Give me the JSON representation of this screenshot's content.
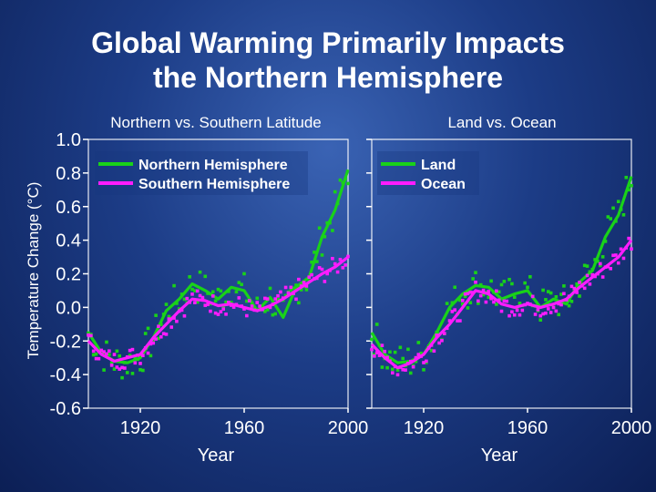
{
  "slide": {
    "title_line1": "Global Warming Primarily Impacts",
    "title_line2": "the Northern Hemisphere"
  },
  "colors": {
    "green": "#19d219",
    "magenta": "#ff1cff",
    "axis": "#ffffff",
    "text": "#ffffff",
    "title": "#ffffff"
  },
  "chart_data": [
    {
      "type": "line",
      "title": "Northern vs. Southern Latitude",
      "xlabel": "Year",
      "ylabel": "Temperature Change (°C)",
      "xlim": [
        1900,
        2000
      ],
      "ylim": [
        -0.6,
        1.0
      ],
      "xticks": [
        1920,
        1960,
        2000
      ],
      "yticks": [
        -0.6,
        -0.4,
        -0.2,
        0.0,
        0.2,
        0.4,
        0.6,
        0.8,
        1.0
      ],
      "ytick_labels": [
        "-0.6",
        "-0.4",
        "-0.2",
        "0.0",
        "0.2",
        "0.4",
        "0.6",
        "0.8",
        "1.0"
      ],
      "legend_position": "top-left",
      "x": [
        1900,
        1905,
        1910,
        1915,
        1920,
        1925,
        1930,
        1935,
        1940,
        1945,
        1950,
        1955,
        1960,
        1965,
        1970,
        1975,
        1980,
        1985,
        1990,
        1995,
        2000
      ],
      "series": [
        {
          "name": "Northern Hemisphere",
          "color": "#19d219",
          "values": [
            -0.15,
            -0.27,
            -0.32,
            -0.33,
            -0.3,
            -0.18,
            -0.02,
            0.05,
            0.14,
            0.1,
            0.05,
            0.12,
            0.1,
            -0.02,
            0.06,
            -0.06,
            0.12,
            0.18,
            0.42,
            0.58,
            0.82
          ]
        },
        {
          "name": "Southern Hemisphere",
          "color": "#ff1cff",
          "values": [
            -0.2,
            -0.28,
            -0.32,
            -0.3,
            -0.28,
            -0.18,
            -0.1,
            -0.02,
            0.05,
            0.04,
            0.01,
            0.02,
            0.0,
            -0.02,
            0.01,
            0.05,
            0.1,
            0.15,
            0.2,
            0.24,
            0.3
          ]
        }
      ]
    },
    {
      "type": "line",
      "title": "Land vs. Ocean",
      "xlabel": "Year",
      "ylabel": "",
      "xlim": [
        1900,
        2000
      ],
      "ylim": [
        -0.6,
        1.0
      ],
      "xticks": [
        1920,
        1960,
        2000
      ],
      "yticks": [
        -0.6,
        -0.4,
        -0.2,
        0.0,
        0.2,
        0.4,
        0.6,
        0.8,
        1.0
      ],
      "ytick_labels": [],
      "legend_position": "top-left",
      "x": [
        1900,
        1905,
        1910,
        1915,
        1920,
        1925,
        1930,
        1935,
        1940,
        1945,
        1950,
        1955,
        1960,
        1965,
        1970,
        1975,
        1980,
        1985,
        1990,
        1995,
        2000
      ],
      "series": [
        {
          "name": "Land",
          "color": "#19d219",
          "values": [
            -0.15,
            -0.28,
            -0.33,
            -0.32,
            -0.28,
            -0.15,
            0.0,
            0.08,
            0.13,
            0.12,
            0.05,
            0.08,
            0.1,
            0.0,
            0.05,
            0.02,
            0.15,
            0.22,
            0.42,
            0.55,
            0.78
          ]
        },
        {
          "name": "Ocean",
          "color": "#ff1cff",
          "values": [
            -0.22,
            -0.3,
            -0.36,
            -0.33,
            -0.28,
            -0.18,
            -0.1,
            0.0,
            0.1,
            0.08,
            0.02,
            0.0,
            0.02,
            0.0,
            0.02,
            0.05,
            0.12,
            0.18,
            0.24,
            0.3,
            0.4
          ]
        }
      ]
    }
  ]
}
